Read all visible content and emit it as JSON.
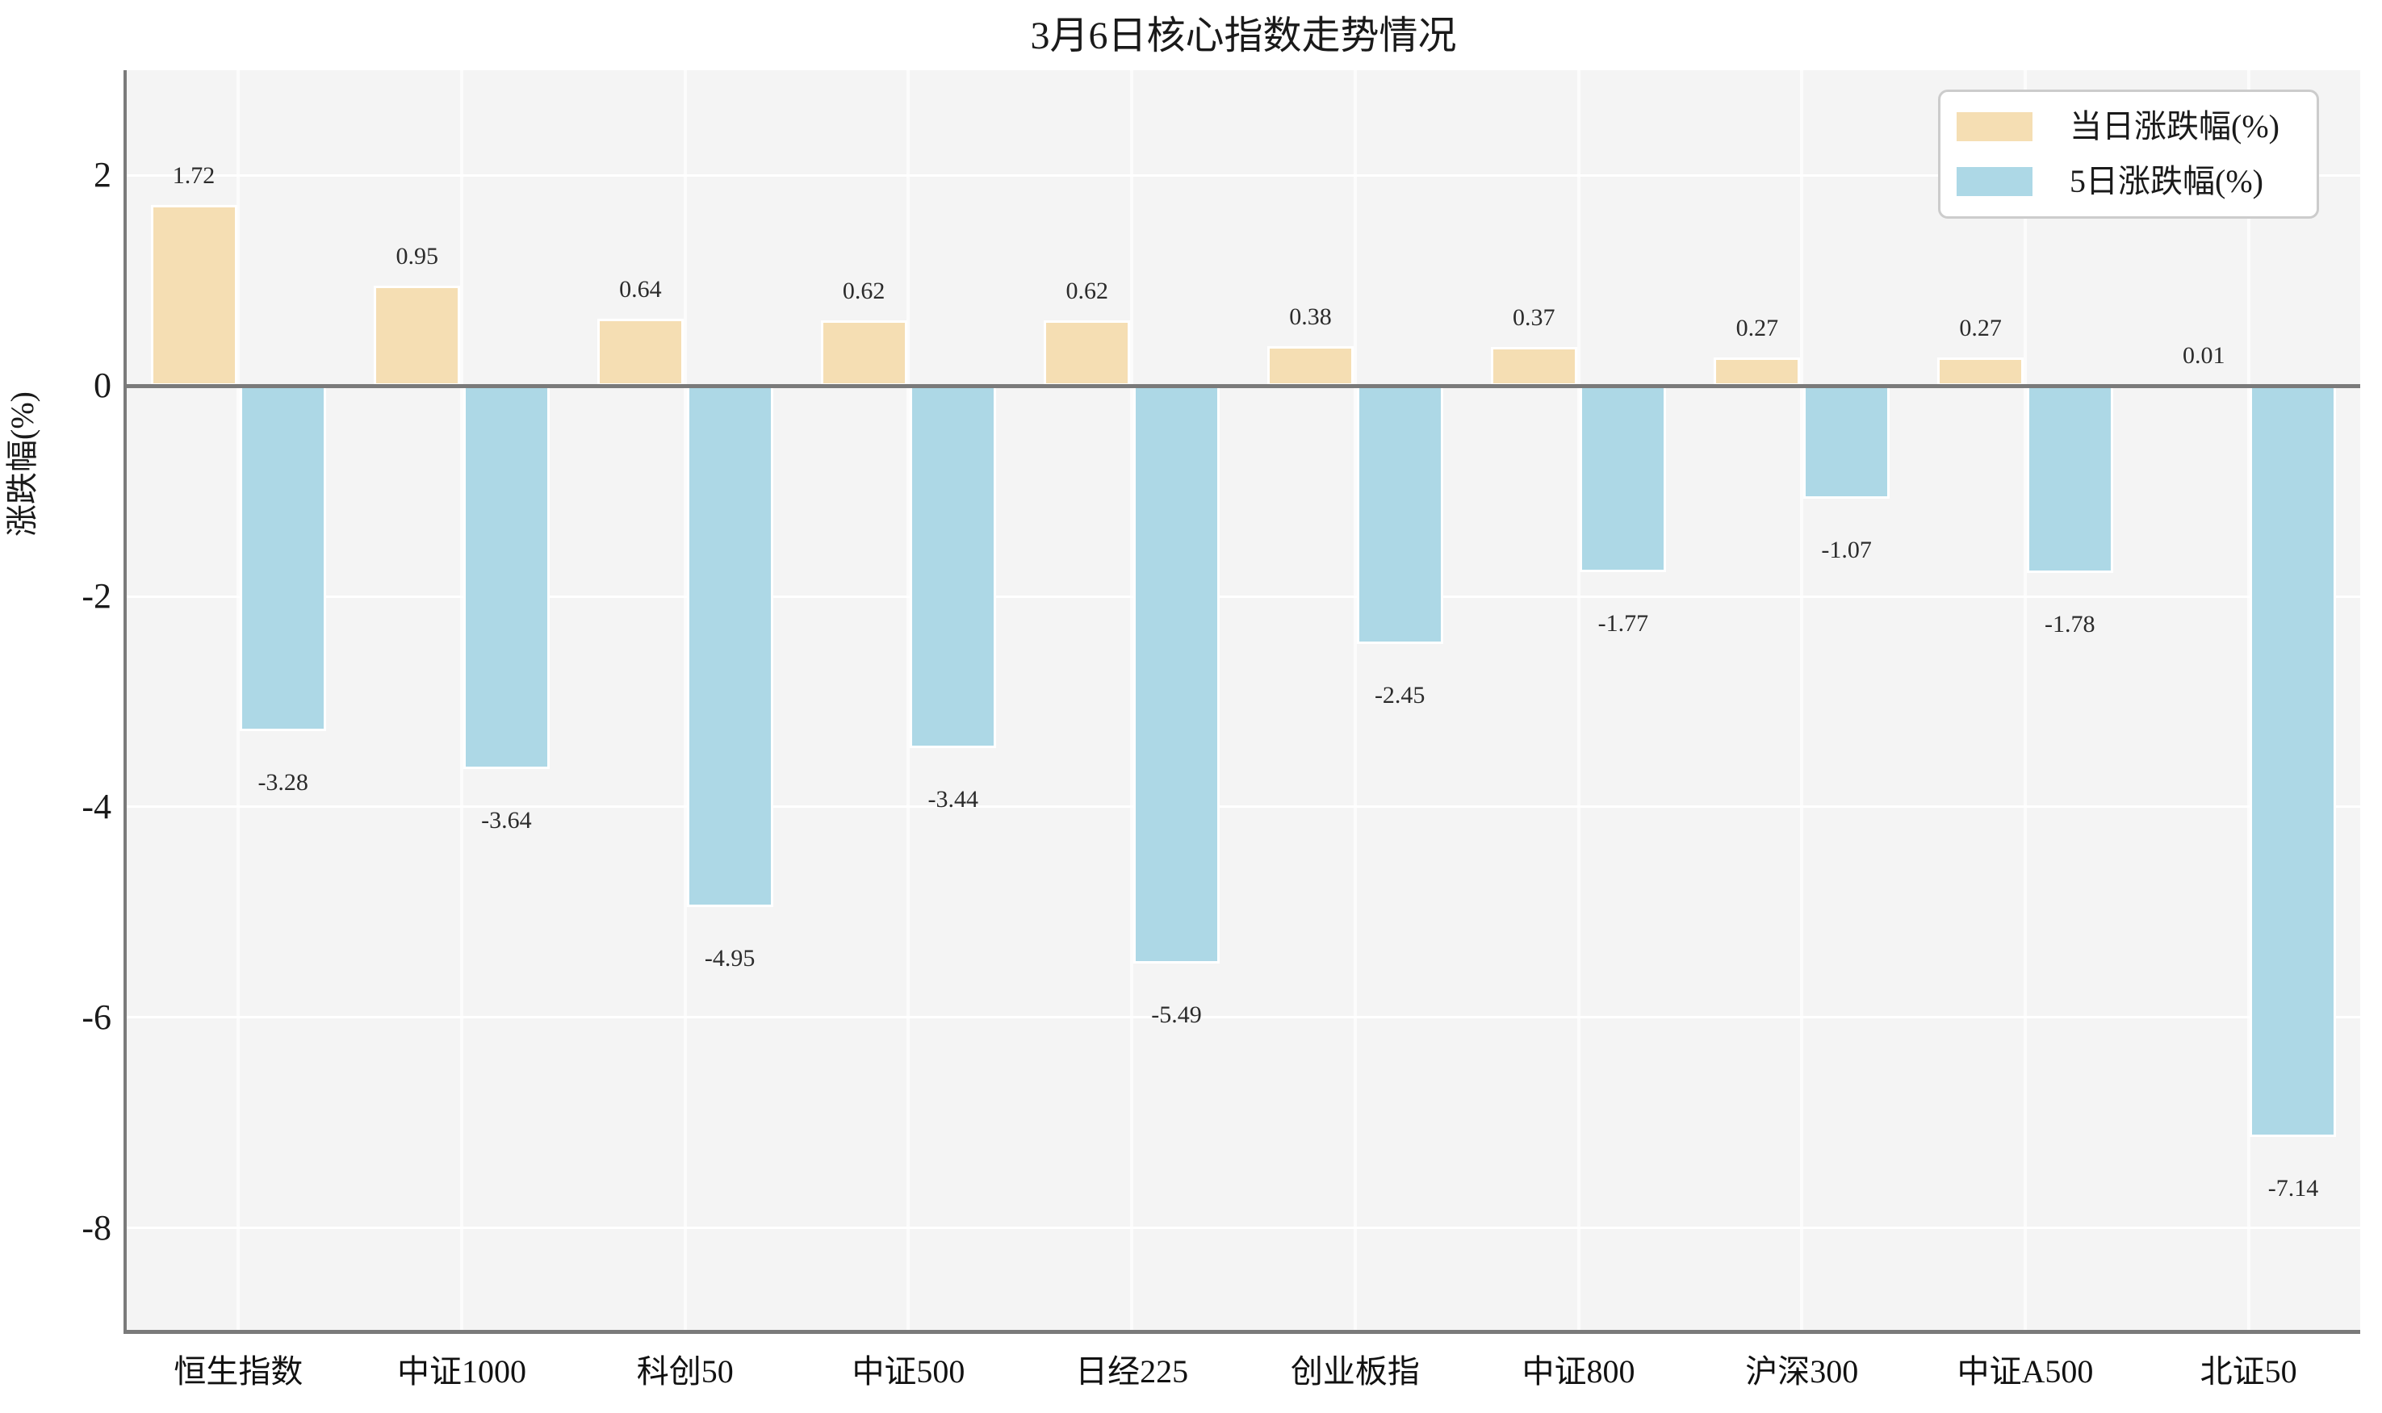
{
  "chart_data": {
    "type": "bar",
    "title": "3月6日核心指数走势情况",
    "xlabel": "",
    "ylabel": "涨跌幅(%)",
    "categories": [
      "恒生指数",
      "中证1000",
      "科创50",
      "中证500",
      "日经225",
      "创业板指",
      "中证800",
      "沪深300",
      "中证A500",
      "北证50"
    ],
    "series": [
      {
        "name": "当日涨跌幅(%)",
        "color": "#f5deb3",
        "values": [
          1.72,
          0.95,
          0.64,
          0.62,
          0.62,
          0.38,
          0.37,
          0.27,
          0.27,
          0.01
        ]
      },
      {
        "name": "5日涨跌幅(%)",
        "color": "#add8e6",
        "values": [
          -3.28,
          -3.64,
          -4.95,
          -3.44,
          -5.49,
          -2.45,
          -1.77,
          -1.07,
          -1.78,
          -7.14
        ]
      }
    ],
    "ylim": [
      -9,
      3
    ],
    "yticks": [
      2,
      0,
      -2,
      -4,
      -6,
      -8
    ],
    "grid": true,
    "legend_position": "upper right",
    "value_labels": true
  },
  "style": {
    "plot_background": "#f4f4f4",
    "grid_color": "#ffffff",
    "spine_color": "#7a7a7a",
    "zero_line_color": "#7a7a7a",
    "bar_edge_color": "#ffffff",
    "text_color": "#262626"
  }
}
